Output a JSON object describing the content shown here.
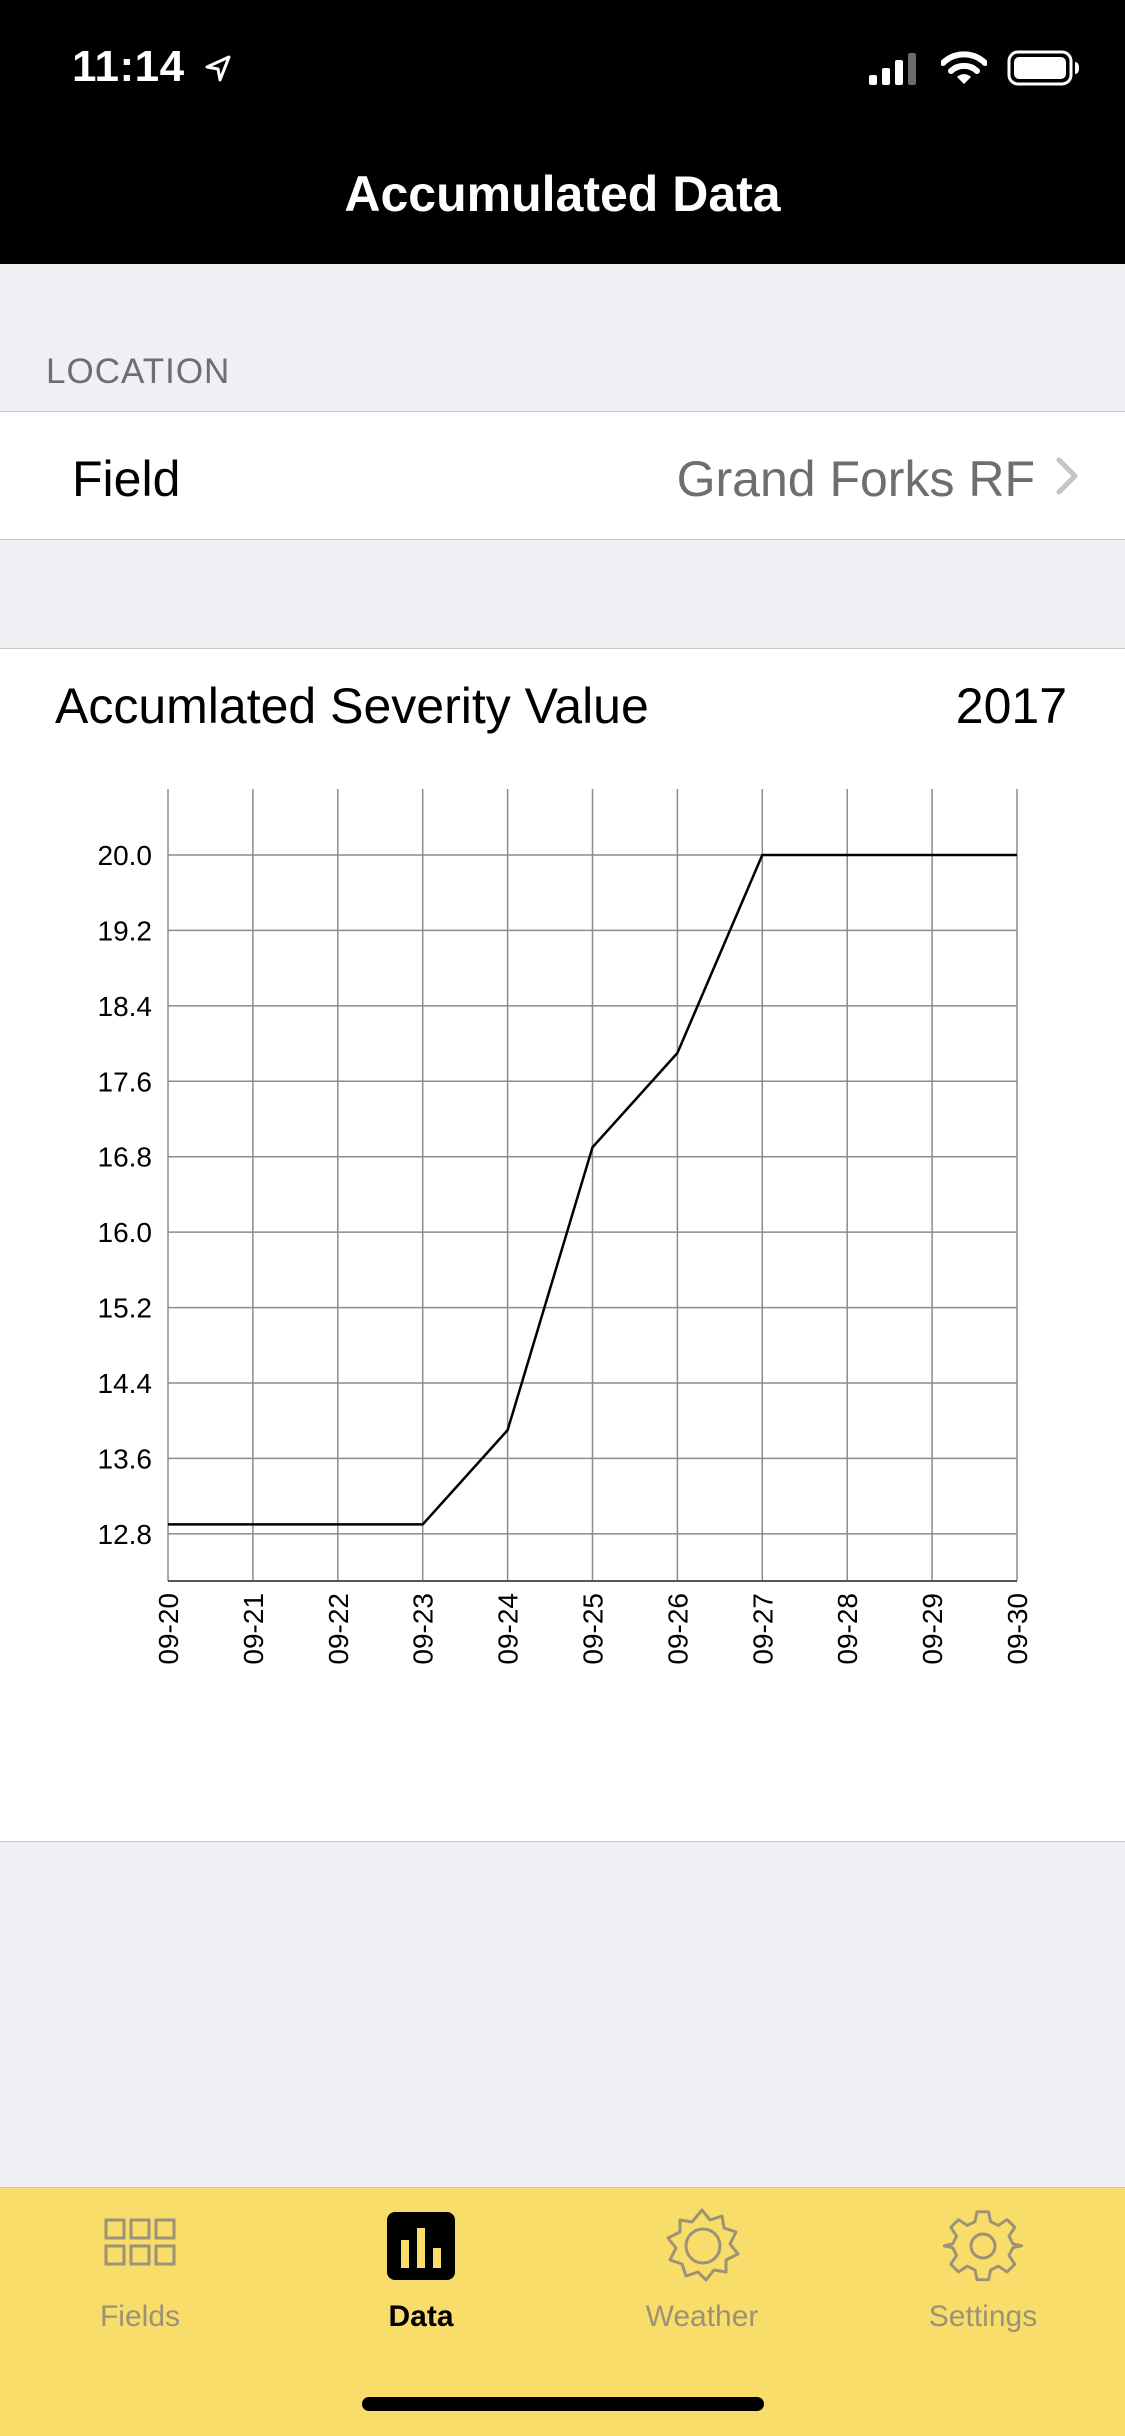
{
  "status_bar": {
    "time": "11:14",
    "icons": [
      "location-arrow-icon",
      "cellular-signal-icon",
      "wifi-icon",
      "battery-icon"
    ]
  },
  "nav": {
    "title": "Accumulated Data"
  },
  "location_section": {
    "header": "LOCATION",
    "field_label": "Field",
    "field_value": "Grand Forks RF"
  },
  "chart_card": {
    "title": "Accumlated Severity Value",
    "year": "2017"
  },
  "chart_data": {
    "type": "line",
    "title": "Accumlated Severity Value",
    "xlabel": "",
    "ylabel": "",
    "x": [
      "09-20",
      "09-21",
      "09-22",
      "09-23",
      "09-24",
      "09-25",
      "09-26",
      "09-27",
      "09-28",
      "09-29",
      "09-30"
    ],
    "values": [
      12.9,
      12.9,
      12.9,
      12.9,
      13.9,
      16.9,
      17.9,
      20.0,
      20.0,
      20.0,
      20.0
    ],
    "yticks": [
      "12.8",
      "13.6",
      "14.4",
      "15.2",
      "16.0",
      "16.8",
      "17.6",
      "18.4",
      "19.2",
      "20.0"
    ],
    "ylim": [
      12.3,
      20.7
    ],
    "grid": true,
    "legend": "none",
    "line_color": "#000000"
  },
  "tabbar": {
    "background": "#f9dd6a",
    "tabs": [
      {
        "label": "Fields",
        "icon": "grid-icon",
        "active": false
      },
      {
        "label": "Data",
        "icon": "bar-chart-icon",
        "active": true
      },
      {
        "label": "Weather",
        "icon": "sun-icon",
        "active": false
      },
      {
        "label": "Settings",
        "icon": "gear-icon",
        "active": false
      }
    ]
  }
}
